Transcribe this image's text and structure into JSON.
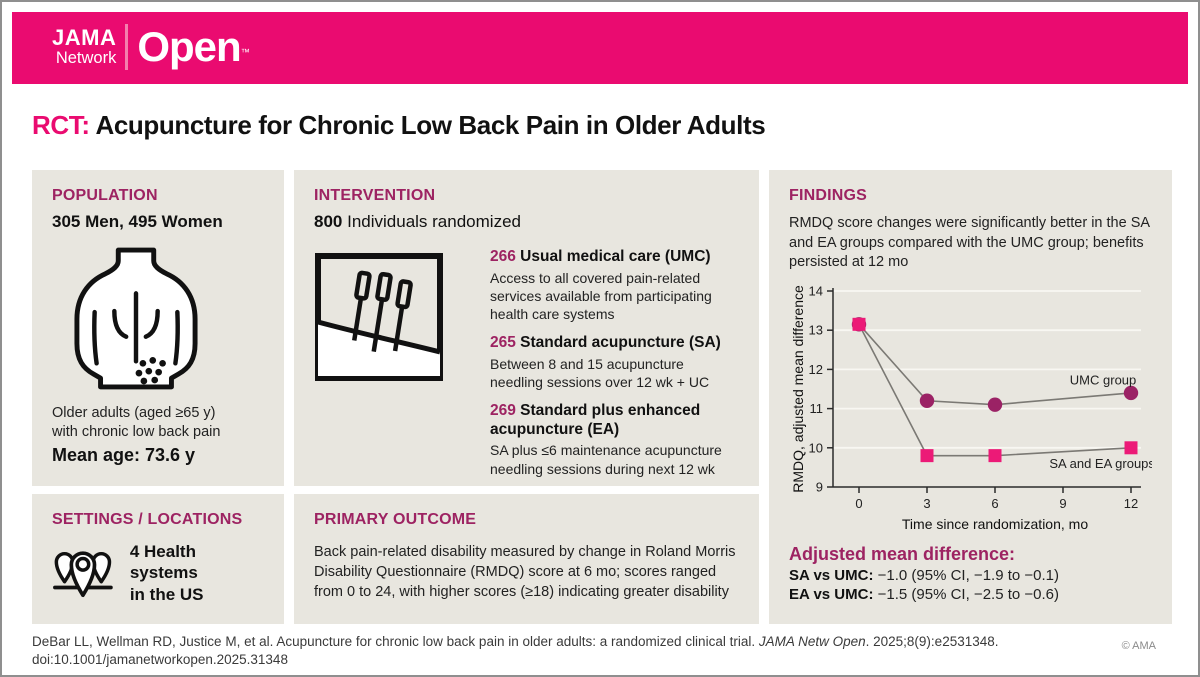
{
  "header": {
    "logo": {
      "jama": "JAMA",
      "network": "Network",
      "open": "Open",
      "tm": "™"
    }
  },
  "title": {
    "tag": "RCT:",
    "text": " Acupuncture for Chronic Low Back Pain in Older Adults"
  },
  "population": {
    "heading": "POPULATION",
    "stat": "305 Men, 495 Women",
    "icon": "back-torso-pain-icon",
    "desc_line1": "Older adults (aged ≥65 y)",
    "desc_line2": "with chronic low back pain",
    "mean_age": "Mean age: 73.6 y"
  },
  "settings": {
    "heading": "SETTINGS / LOCATIONS",
    "icon": "map-pins-icon",
    "text_line1": "4 Health systems",
    "text_line2": "in the US"
  },
  "intervention": {
    "heading": "INTERVENTION",
    "count": "800",
    "count_label": " Individuals randomized",
    "icon": "acupuncture-needles-icon",
    "arms": [
      {
        "n": "266",
        "name": " Usual medical care (UMC)",
        "desc": "Access to all covered pain-related services available from participating health care systems"
      },
      {
        "n": "265",
        "name": " Standard acupuncture (SA)",
        "desc": "Between 8 and 15 acupuncture needling sessions over 12 wk + UC"
      },
      {
        "n": "269",
        "name": " Standard plus enhanced acupuncture (EA)",
        "desc": "SA plus ≤6 maintenance acupuncture needling sessions during next 12 wk"
      }
    ]
  },
  "primary_outcome": {
    "heading": "PRIMARY OUTCOME",
    "text": "Back pain-related disability measured by change in Roland Morris Disability Questionnaire (RMDQ) score at 6 mo; scores ranged from 0 to 24, with higher scores (≥18) indicating greater disability"
  },
  "findings": {
    "heading": "FINDINGS",
    "summary": "RMDQ score changes were significantly better in the SA and EA groups compared with the UMC group; benefits persisted at 12 mo",
    "adjusted": {
      "heading": "Adjusted mean difference:",
      "rows": [
        {
          "label": "SA vs UMC:",
          "value": " −1.0 (95% CI, −1.9 to −0.1)"
        },
        {
          "label": "EA vs UMC:",
          "value": " −1.5 (95% CI, −2.5 to −0.6)"
        }
      ]
    }
  },
  "chart_data": {
    "type": "line",
    "title": "",
    "x": [
      0,
      3,
      6,
      12
    ],
    "series": [
      {
        "name": "UMC group",
        "values": [
          13.15,
          11.2,
          11.1,
          11.4
        ],
        "marker": "circle",
        "color": "#9b2265",
        "label_at": {
          "x": 9.3,
          "y": 11.62
        }
      },
      {
        "name": "SA and EA groups",
        "values": [
          13.15,
          9.8,
          9.8,
          10.0
        ],
        "marker": "square",
        "color": "#ec1a77",
        "label_at": {
          "x": 8.4,
          "y": 9.48
        }
      }
    ],
    "xlabel": "Time since randomization, mo",
    "ylabel": "RMDQ, adjusted mean difference",
    "xticks": [
      0,
      3,
      6,
      9,
      12
    ],
    "yticks": [
      9,
      10,
      11,
      12,
      13,
      14
    ],
    "xlim": [
      0,
      12
    ],
    "ylim": [
      9,
      14
    ],
    "grid": true,
    "legend_position": "inline-labels",
    "line_color": "#7b7974"
  },
  "footer": {
    "citation_pre": "DeBar LL, Wellman RD, Justice M, et al. Acupuncture for chronic low back pain in older adults: a randomized clinical trial. ",
    "citation_italic": "JAMA Netw Open",
    "citation_post": ". 2025;8(9):e2531348. doi:10.1001/jamanetworkopen.2025.31348",
    "copyright": "© AMA"
  },
  "colors": {
    "brand_pink": "#ea0b70",
    "heading_magenta": "#9d2362",
    "panel_background": "#e8e6df",
    "umc_marker": "#9b2265",
    "sa_ea_marker": "#ec1a77",
    "chart_line": "#7b7974"
  }
}
